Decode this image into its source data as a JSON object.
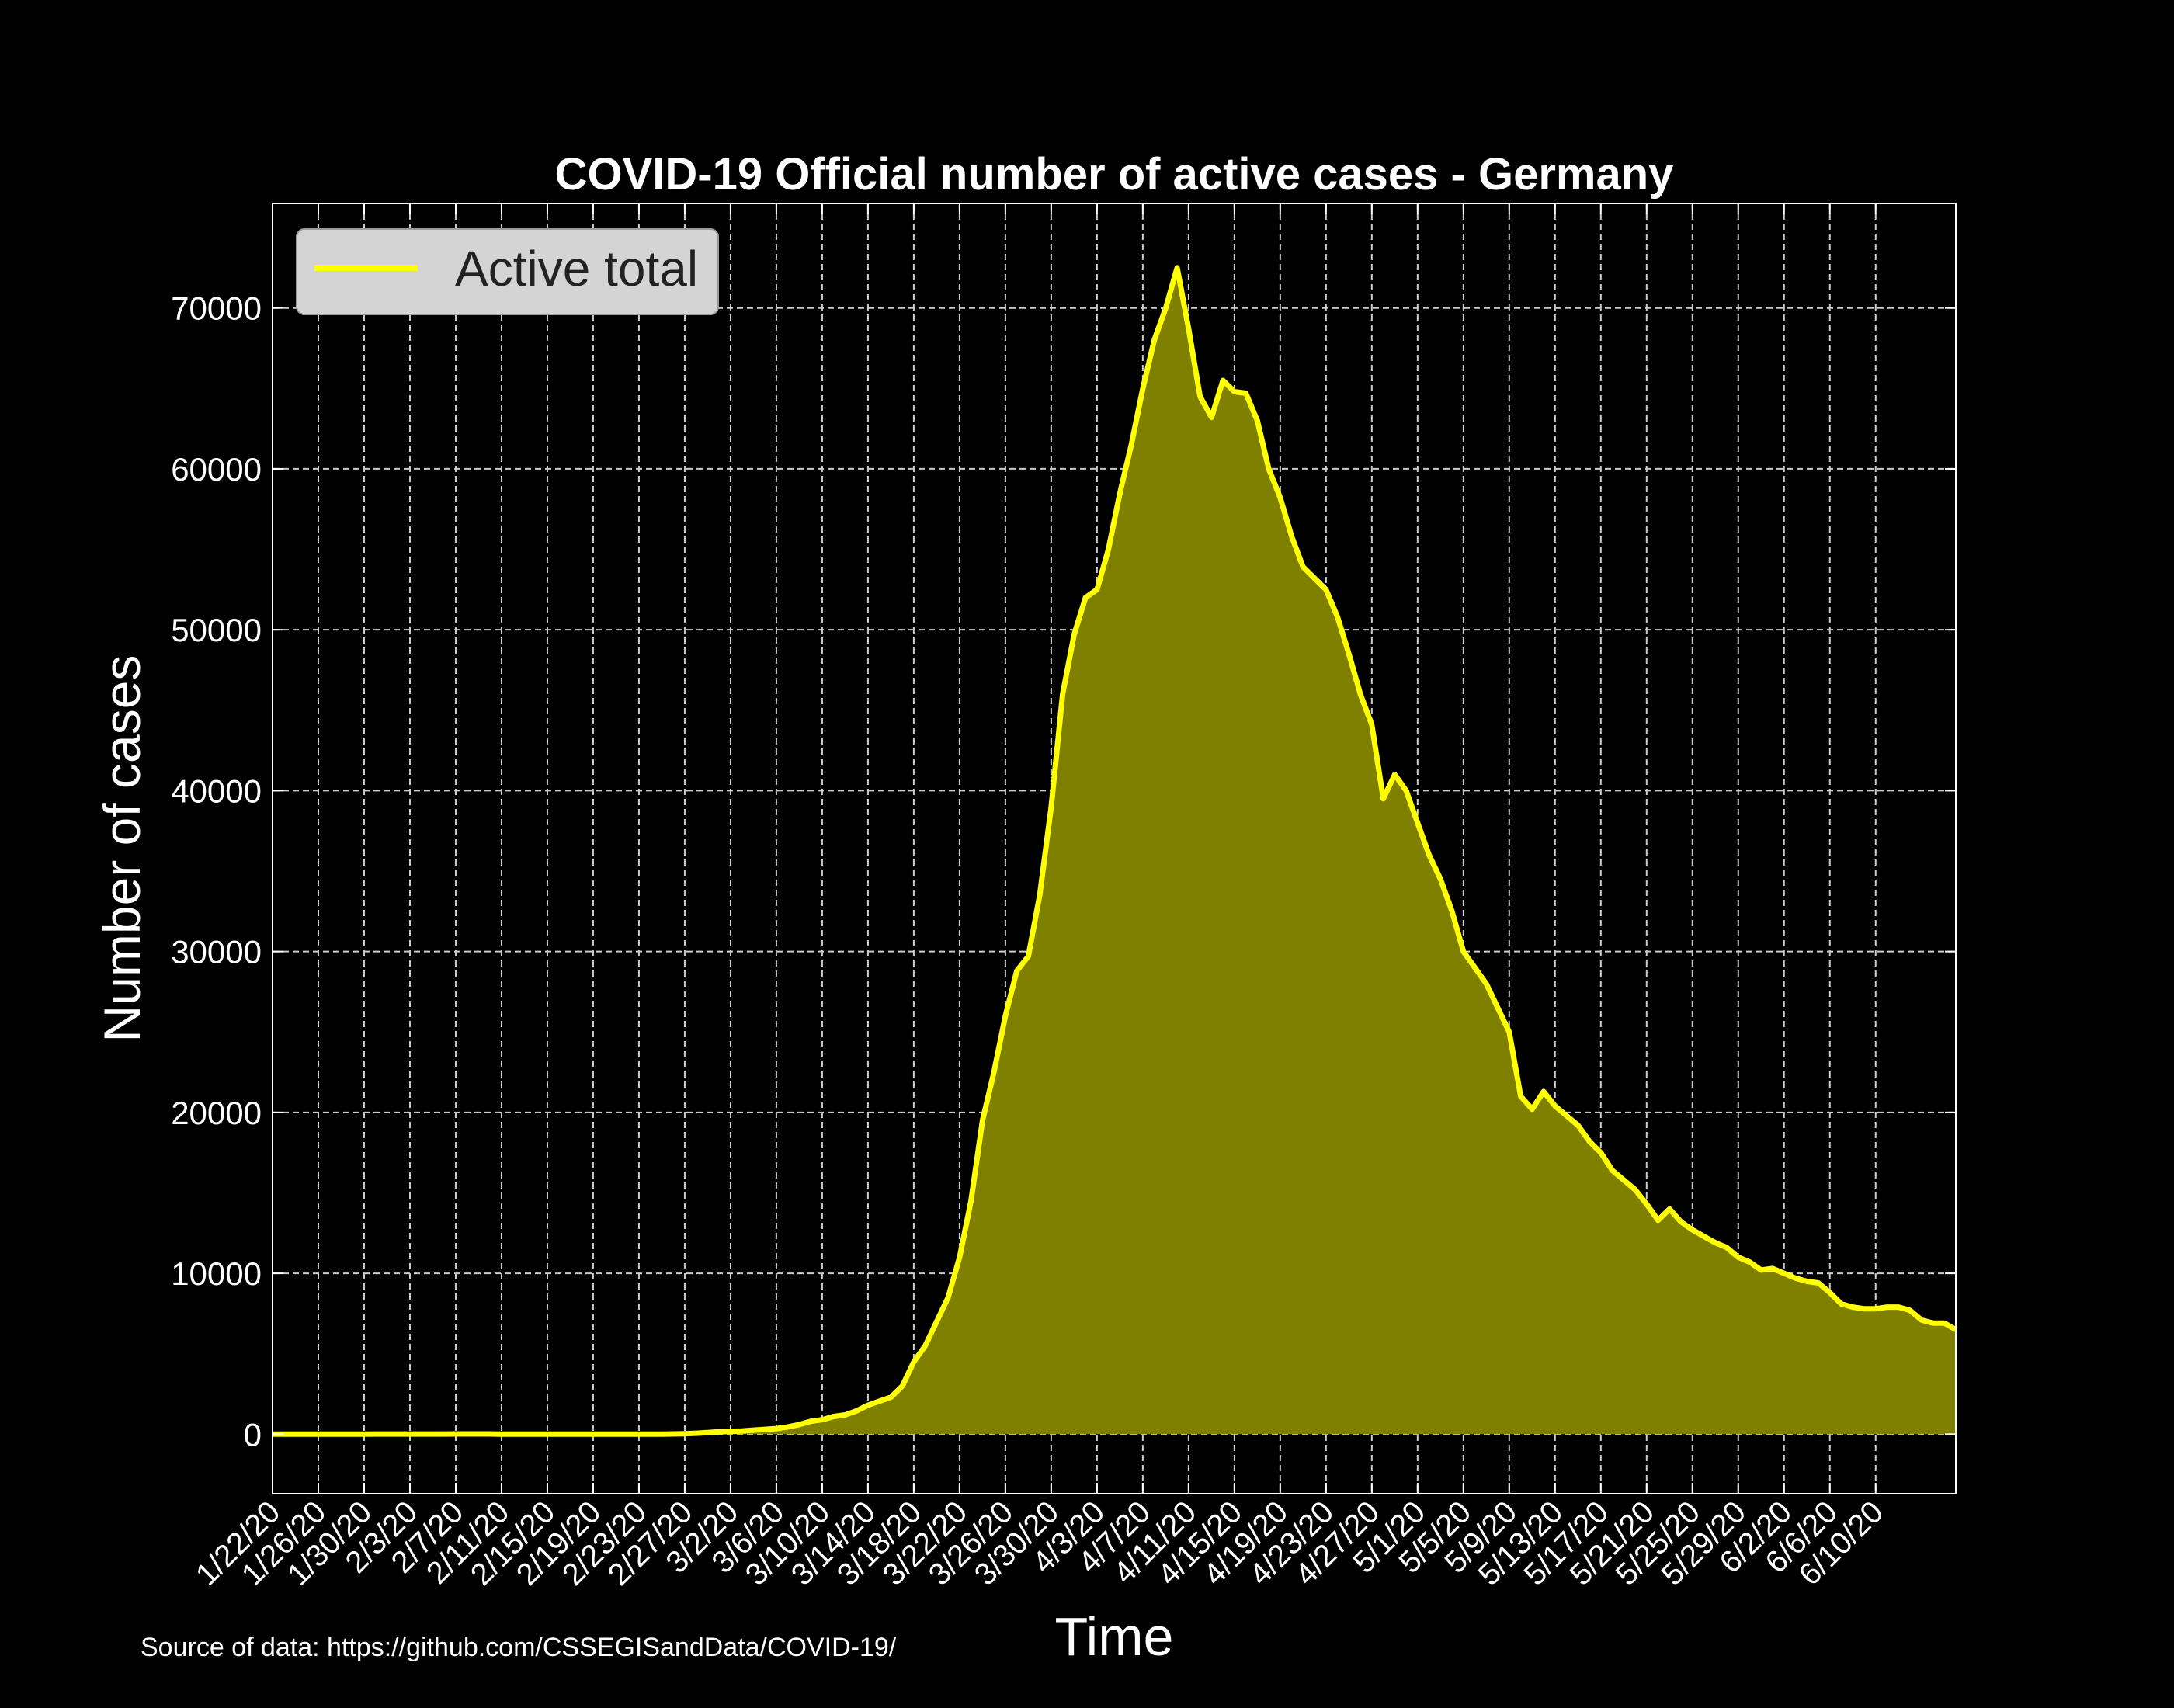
{
  "chart_data": {
    "type": "area",
    "title": "COVID-19 Official number of active cases - Germany",
    "xlabel": "Time",
    "ylabel": "Number of cases",
    "source": "Source of data: https://github.com/CSSEGISandData/COVID-19/",
    "ylim": [
      -3700,
      76500
    ],
    "y_ticks": [
      0,
      10000,
      20000,
      30000,
      40000,
      50000,
      60000,
      70000
    ],
    "x_tick_labels": [
      "1/22/20",
      "1/26/20",
      "1/30/20",
      "2/3/20",
      "2/7/20",
      "2/11/20",
      "2/15/20",
      "2/19/20",
      "2/23/20",
      "2/27/20",
      "3/2/20",
      "3/6/20",
      "3/10/20",
      "3/14/20",
      "3/18/20",
      "3/22/20",
      "3/26/20",
      "3/30/20",
      "4/3/20",
      "4/7/20",
      "4/11/20",
      "4/15/20",
      "4/19/20",
      "4/23/20",
      "4/27/20",
      "5/1/20",
      "5/5/20",
      "5/9/20",
      "5/13/20",
      "5/17/20",
      "5/21/20",
      "5/25/20",
      "5/29/20",
      "6/2/20",
      "6/6/20",
      "6/10/20"
    ],
    "grid": true,
    "legend": "top-left",
    "series": [
      {
        "name": "Active total",
        "color": "#ffff00",
        "fill_color": "#808000",
        "x_start": "1/22/20",
        "x_step_days": 1,
        "values": [
          0,
          0,
          0,
          0,
          0,
          4,
          4,
          5,
          8,
          10,
          12,
          12,
          12,
          12,
          13,
          13,
          14,
          14,
          14,
          14,
          2,
          2,
          2,
          2,
          2,
          2,
          2,
          2,
          2,
          2,
          2,
          2,
          2,
          2,
          3,
          15,
          30,
          60,
          100,
          150,
          180,
          200,
          250,
          300,
          350,
          450,
          600,
          800,
          900,
          1100,
          1200,
          1450,
          1800,
          2050,
          2300,
          3000,
          4500,
          5500,
          7000,
          8500,
          11000,
          14500,
          19500,
          22500,
          26000,
          28800,
          29700,
          33500,
          39000,
          46000,
          49700,
          52000,
          52500,
          55000,
          58500,
          61500,
          65000,
          68000,
          70000,
          72500,
          68700,
          64500,
          63200,
          65500,
          64800,
          64700,
          63000,
          60000,
          58200,
          55800,
          53900,
          53200,
          52500,
          50800,
          48500,
          46000,
          44100,
          39500,
          41000,
          40000,
          38000,
          36000,
          34500,
          32500,
          30000,
          29000,
          28000,
          26500,
          25000,
          21000,
          20200,
          21300,
          20400,
          19800,
          19200,
          18200,
          17500,
          16400,
          15800,
          15200,
          14300,
          13300,
          14000,
          13200,
          12700,
          12300,
          11900,
          11600,
          11000,
          10700,
          10200,
          10300,
          10000,
          9700,
          9500,
          9400,
          8800,
          8100,
          7900,
          7800,
          7800,
          7900,
          7900,
          7700,
          7100,
          6900,
          6900,
          6500
        ]
      }
    ]
  }
}
